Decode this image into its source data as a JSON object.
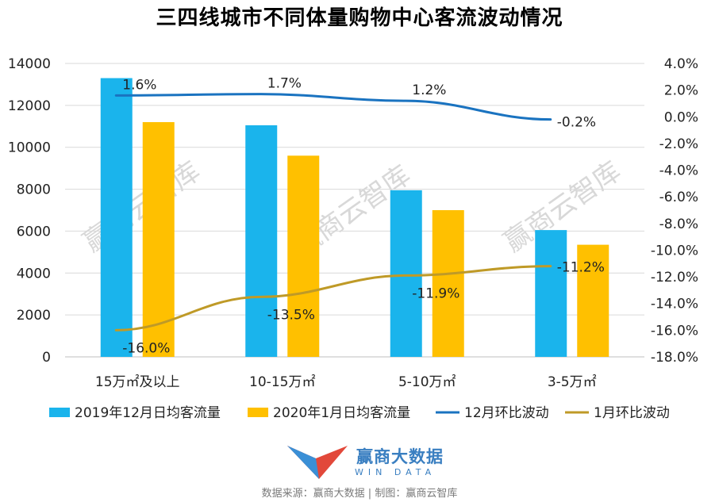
{
  "title": "三四线城市不同体量购物中心客流波动情况",
  "watermark": "赢商云智库",
  "logo": {
    "name": "赢商大数据",
    "sub": "WIN DATA"
  },
  "source": "数据来源：赢商大数据 | 制图：赢商云智库",
  "colors": {
    "bar2019": "#1ab4ec",
    "bar2020": "#ffc000",
    "line12": "#1a73c0",
    "line1": "#bf9a27"
  },
  "chart_data": {
    "type": "bar",
    "title": "三四线城市不同体量购物中心客流波动情况",
    "categories": [
      "15万㎡及以上",
      "10-15万㎡",
      "5-10万㎡",
      "3-5万㎡"
    ],
    "ylim": [
      0,
      14000
    ],
    "y2lim": [
      -18.0,
      4.0
    ],
    "y_ticks": [
      "0",
      "2000",
      "4000",
      "6000",
      "8000",
      "10000",
      "12000",
      "14000"
    ],
    "y2_ticks": [
      "-18.0%",
      "-16.0%",
      "-14.0%",
      "-12.0%",
      "-10.0%",
      "-8.0%",
      "-6.0%",
      "-4.0%",
      "-2.0%",
      "0.0%",
      "2.0%",
      "4.0%"
    ],
    "grid": true,
    "legend_position": "bottom",
    "series": [
      {
        "name": "2019年12月日均客流量",
        "type": "bar",
        "axis": "left",
        "values": [
          13300,
          11050,
          7950,
          6050
        ]
      },
      {
        "name": "2020年1月日均客流量",
        "type": "bar",
        "axis": "left",
        "values": [
          11200,
          9600,
          7000,
          5350
        ]
      },
      {
        "name": "12月环比波动",
        "type": "line",
        "axis": "right",
        "values": [
          1.6,
          1.7,
          1.2,
          -0.2
        ],
        "labels": [
          "1.6%",
          "1.7%",
          "1.2%",
          "-0.2%"
        ]
      },
      {
        "name": "1月环比波动",
        "type": "line",
        "axis": "right",
        "values": [
          -16.0,
          -13.5,
          -11.9,
          -11.2
        ],
        "labels": [
          "-16.0%",
          "-13.5%",
          "-11.9%",
          "-11.2%"
        ]
      }
    ]
  }
}
